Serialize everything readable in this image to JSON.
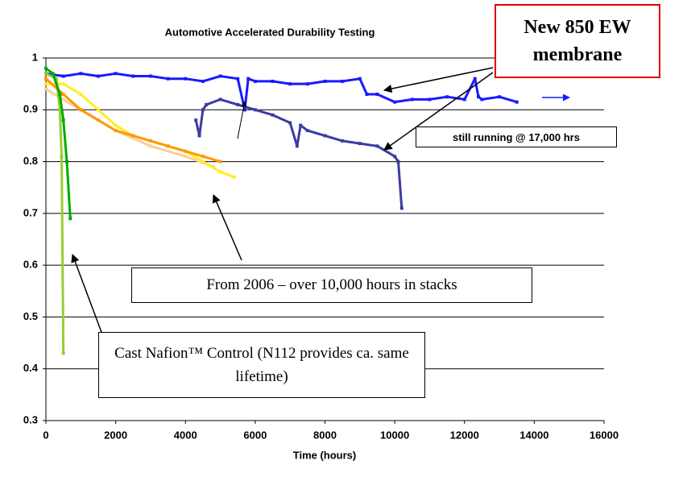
{
  "chart_data": {
    "type": "line",
    "title": "Automotive Accelerated Durability Testing",
    "xlabel": "Time (hours)",
    "xlim": [
      0,
      16000
    ],
    "xticks": [
      0,
      2000,
      4000,
      6000,
      8000,
      10000,
      12000,
      14000,
      16000
    ],
    "ylim": [
      0.3,
      1
    ],
    "yticks": [
      0.3,
      0.4,
      0.5,
      0.6,
      0.7,
      0.8,
      0.9,
      1
    ],
    "grid": true,
    "annotations": [
      "New 850 EW membrane",
      "still running @ 17,000 hrs",
      "From 2006 – over 10,000 hours in stacks",
      "Cast Nafion™ Control (N112 provides ca. same lifetime)"
    ],
    "series": [
      {
        "color": "#1a1aff",
        "x": [
          0,
          500,
          1000,
          1500,
          2000,
          2500,
          3000,
          3500,
          4000,
          4500,
          5000,
          5500,
          5700,
          5800,
          6000,
          6500,
          7000,
          7500,
          8000,
          8500,
          9000,
          9200,
          9500,
          10000,
          10500,
          11000,
          11500,
          12000,
          12300,
          12400,
          12500,
          13000,
          13500
        ],
        "values": [
          0.97,
          0.965,
          0.97,
          0.965,
          0.97,
          0.965,
          0.965,
          0.96,
          0.96,
          0.955,
          0.965,
          0.96,
          0.9,
          0.96,
          0.955,
          0.955,
          0.95,
          0.95,
          0.955,
          0.955,
          0.96,
          0.93,
          0.93,
          0.915,
          0.92,
          0.92,
          0.925,
          0.92,
          0.96,
          0.925,
          0.92,
          0.925,
          0.915
        ]
      },
      {
        "color": "#3c3ca0",
        "x": [
          4300,
          4400,
          4500,
          4600,
          5000,
          5500,
          6000,
          6500,
          7000,
          7200,
          7300,
          7500,
          8000,
          8500,
          9000,
          9500,
          10000,
          10100,
          10200
        ],
        "values": [
          0.88,
          0.85,
          0.9,
          0.91,
          0.92,
          0.91,
          0.9,
          0.89,
          0.875,
          0.83,
          0.87,
          0.86,
          0.85,
          0.84,
          0.835,
          0.83,
          0.81,
          0.8,
          0.71
        ]
      },
      {
        "color": "#ffcc99",
        "x": [
          0,
          1000,
          2000,
          3000,
          4000,
          4800
        ],
        "values": [
          0.94,
          0.9,
          0.86,
          0.83,
          0.81,
          0.79
        ]
      },
      {
        "color": "#ffee22",
        "x": [
          0,
          500,
          1000,
          1500,
          2000,
          2500,
          3000,
          3500,
          4000,
          4500,
          5000,
          5400
        ],
        "values": [
          0.95,
          0.95,
          0.93,
          0.9,
          0.87,
          0.85,
          0.84,
          0.83,
          0.82,
          0.8,
          0.78,
          0.77
        ]
      },
      {
        "color": "#ff9900",
        "x": [
          0,
          500,
          1000,
          1500,
          2000,
          2500,
          3000,
          3500,
          4000,
          4500,
          5000
        ],
        "values": [
          0.96,
          0.93,
          0.9,
          0.88,
          0.86,
          0.85,
          0.84,
          0.83,
          0.82,
          0.81,
          0.8
        ]
      },
      {
        "color": "#99cc33",
        "x": [
          0,
          300,
          400,
          450,
          500
        ],
        "values": [
          0.97,
          0.96,
          0.9,
          0.81,
          0.43
        ]
      },
      {
        "color": "#00aa00",
        "x": [
          0,
          200,
          400,
          500,
          600,
          700
        ],
        "values": [
          0.98,
          0.97,
          0.93,
          0.88,
          0.8,
          0.69
        ]
      }
    ]
  }
}
